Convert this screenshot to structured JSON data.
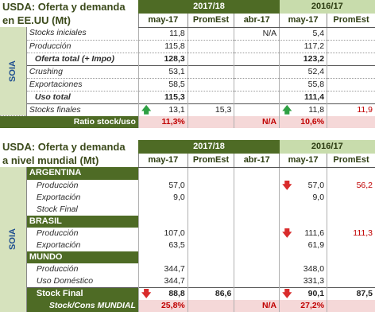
{
  "table1": {
    "title_line1": "USDA: Oferta y demanda",
    "title_line2": "en EE.UU (Mt)",
    "group_a": "2017/18",
    "group_b": "2016/17",
    "cols": [
      "may-17",
      "PromEst",
      "abr-17",
      "may-17",
      "PromEst"
    ],
    "side_label": "SOIA",
    "rows": [
      {
        "label": "Stocks iniciales",
        "v": [
          "11,8",
          "",
          "N/A",
          "5,4",
          ""
        ]
      },
      {
        "label": "Producción",
        "v": [
          "115,8",
          "",
          "",
          "117,2",
          ""
        ]
      },
      {
        "label": "Oferta total (+ Impo)",
        "v": [
          "128,3",
          "",
          "",
          "123,2",
          ""
        ]
      },
      {
        "label": "Crushing",
        "v": [
          "53,1",
          "",
          "",
          "52,4",
          ""
        ]
      },
      {
        "label": "Exportaciones",
        "v": [
          "58,5",
          "",
          "",
          "55,8",
          ""
        ]
      },
      {
        "label": "Uso total",
        "v": [
          "115,3",
          "",
          "",
          "111,4",
          ""
        ]
      },
      {
        "label": "Stocks finales",
        "v": [
          "13,1",
          "15,3",
          "",
          "11,8",
          "11,9"
        ]
      }
    ],
    "ratio": {
      "label": "Ratio stock/uso",
      "v": [
        "11,3%",
        "",
        "N/A",
        "10,6%",
        ""
      ]
    }
  },
  "table2": {
    "title_line1": "USDA: Oferta y demanda",
    "title_line2": "a nivel mundial (Mt)",
    "group_a": "2017/18",
    "group_b": "2016/17",
    "cols": [
      "may-17",
      "PromEst",
      "abr-17",
      "may-17",
      "PromEst"
    ],
    "side_label": "SOIA",
    "argentina": {
      "name": "ARGENTINA",
      "rows": [
        {
          "label": "Producción",
          "v": [
            "57,0",
            "",
            "",
            "57,0",
            "56,2"
          ]
        },
        {
          "label": "Exportación",
          "v": [
            "9,0",
            "",
            "",
            "9,0",
            ""
          ]
        },
        {
          "label": "Stock Final",
          "v": [
            "",
            "",
            "",
            "",
            ""
          ]
        }
      ]
    },
    "brasil": {
      "name": "BRASIL",
      "rows": [
        {
          "label": "Producción",
          "v": [
            "107,0",
            "",
            "",
            "111,6",
            "111,3"
          ]
        },
        {
          "label": "Exportación",
          "v": [
            "63,5",
            "",
            "",
            "61,9",
            ""
          ]
        }
      ]
    },
    "mundo": {
      "name": "MUNDO",
      "rows": [
        {
          "label": "Producción",
          "v": [
            "344,7",
            "",
            "",
            "348,0",
            ""
          ]
        },
        {
          "label": "Uso Doméstico",
          "v": [
            "344,7",
            "",
            "",
            "331,3",
            ""
          ]
        },
        {
          "label": "Stock Final",
          "v": [
            "88,8",
            "86,6",
            "",
            "90,1",
            "87,5"
          ]
        }
      ]
    },
    "ratio": {
      "label": "Stock/Cons MUNDIAL",
      "v": [
        "25,8%",
        "",
        "N/A",
        "27,2%",
        ""
      ]
    }
  },
  "icons": {
    "up": "arrow-up-icon",
    "down": "arrow-down-icon"
  },
  "colors": {
    "header_dark": "#4e6b25",
    "header_light": "#c8dcac",
    "side": "#d6e2bd",
    "red": "#c00000",
    "ratio_bg": "#f5d8d8"
  }
}
